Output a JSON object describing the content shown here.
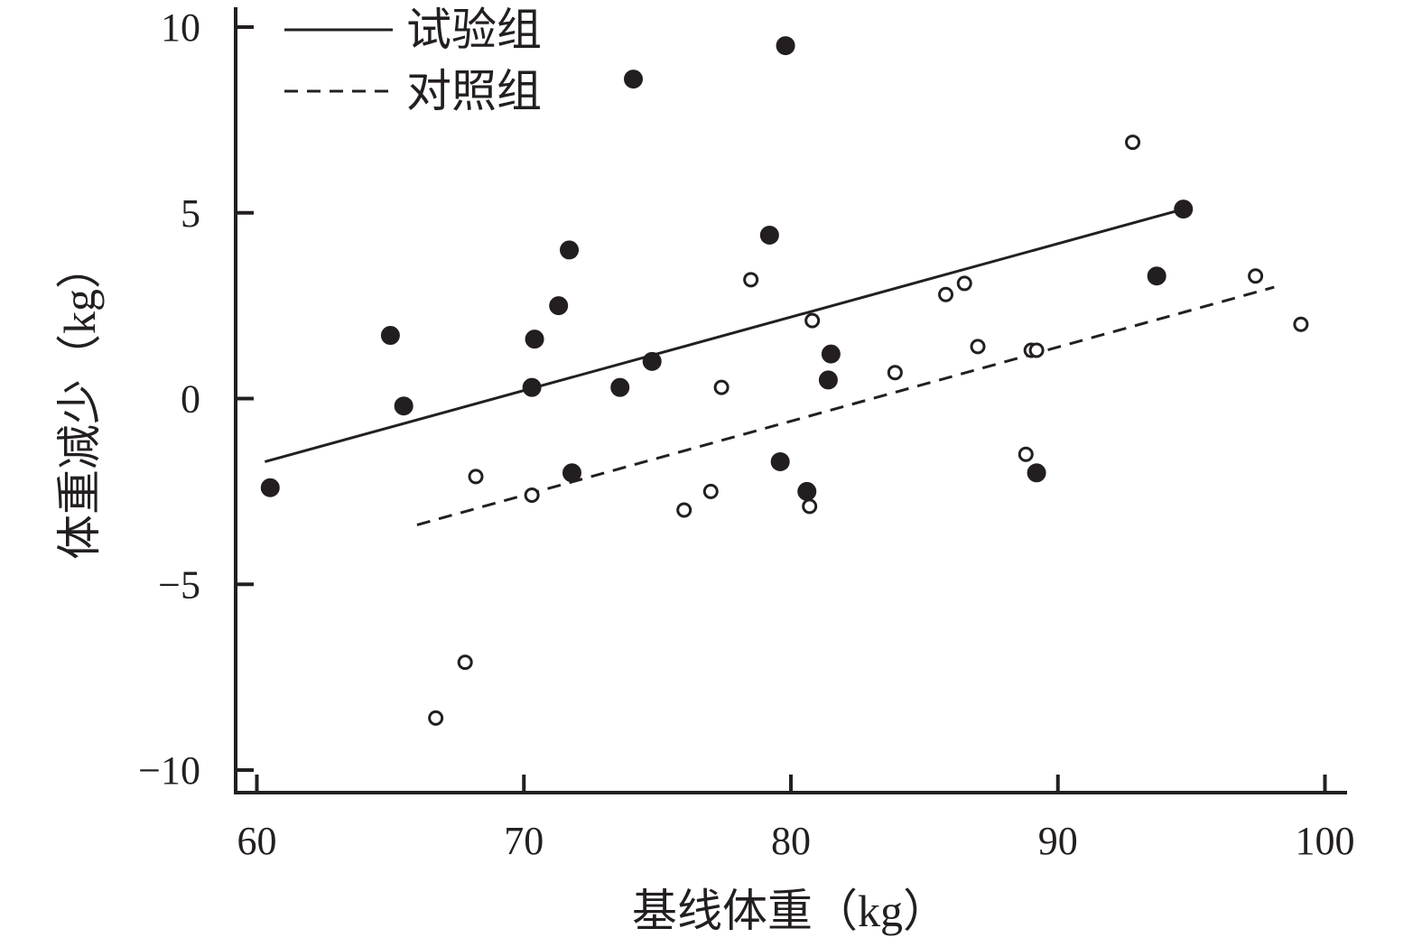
{
  "chart_data": {
    "type": "scatter",
    "xlabel": "基线体重（kg）",
    "ylabel": "体重减少（kg）",
    "xlim": [
      60,
      100
    ],
    "ylim": [
      -10,
      10
    ],
    "xticks": [
      60,
      70,
      80,
      90,
      100
    ],
    "yticks": [
      10,
      5,
      0,
      -5,
      -10
    ],
    "xtick_labels": [
      "60",
      "70",
      "80",
      "90",
      "100"
    ],
    "ytick_labels": [
      "10",
      "5",
      "0",
      "−5",
      "−10"
    ],
    "grid": false,
    "legend_position": "top-left",
    "series": [
      {
        "name": "试验组",
        "marker": "filled-circle",
        "line_style": "solid",
        "color": "#231f20",
        "points": [
          [
            60.5,
            -2.4
          ],
          [
            65.0,
            1.7
          ],
          [
            65.5,
            -0.2
          ],
          [
            70.3,
            0.3
          ],
          [
            70.4,
            1.6
          ],
          [
            71.3,
            2.5
          ],
          [
            71.7,
            4.0
          ],
          [
            71.8,
            -2.0
          ],
          [
            73.6,
            0.3
          ],
          [
            74.1,
            8.6
          ],
          [
            74.8,
            1.0
          ],
          [
            79.2,
            4.4
          ],
          [
            79.6,
            -1.7
          ],
          [
            79.8,
            9.5
          ],
          [
            80.6,
            -2.5
          ],
          [
            81.4,
            0.5
          ],
          [
            81.5,
            1.2
          ],
          [
            89.2,
            -2.0
          ],
          [
            93.7,
            3.3
          ],
          [
            94.7,
            5.1
          ]
        ],
        "fit_line": [
          [
            60.3,
            -1.7
          ],
          [
            94.7,
            5.1
          ]
        ]
      },
      {
        "name": "对照组",
        "marker": "open-circle",
        "line_style": "dashed",
        "color": "#231f20",
        "points": [
          [
            66.7,
            -8.6
          ],
          [
            67.8,
            -7.1
          ],
          [
            68.2,
            -2.1
          ],
          [
            70.3,
            -2.6
          ],
          [
            76.0,
            -3.0
          ],
          [
            77.0,
            -2.5
          ],
          [
            77.4,
            0.3
          ],
          [
            78.5,
            3.2
          ],
          [
            80.7,
            -2.9
          ],
          [
            80.8,
            2.1
          ],
          [
            83.9,
            0.7
          ],
          [
            85.8,
            2.8
          ],
          [
            86.5,
            3.1
          ],
          [
            87.0,
            1.4
          ],
          [
            88.8,
            -1.5
          ],
          [
            89.0,
            1.3
          ],
          [
            89.2,
            1.3
          ],
          [
            92.8,
            6.9
          ],
          [
            97.4,
            3.3
          ],
          [
            99.1,
            2.0
          ]
        ],
        "fit_line": [
          [
            66.0,
            -3.4
          ],
          [
            98.1,
            3.0
          ]
        ]
      }
    ]
  }
}
